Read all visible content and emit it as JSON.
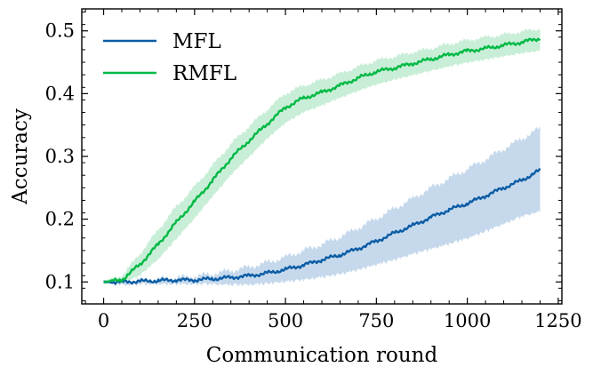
{
  "chart_data": {
    "type": "line",
    "title": "",
    "xlabel": "Communication round",
    "ylabel": "Accuracy",
    "xlim": [
      -60,
      1260
    ],
    "ylim": [
      0.065,
      0.535
    ],
    "xticks": [
      0,
      250,
      500,
      750,
      1000,
      1250
    ],
    "xtick_labels": [
      "0",
      "250",
      "500",
      "750",
      "1000",
      "1250"
    ],
    "yticks": [
      0.1,
      0.2,
      0.3,
      0.4,
      0.5
    ],
    "ytick_labels": [
      "0.1",
      "0.2",
      "0.3",
      "0.4",
      "0.5"
    ],
    "legend_position": "top-left",
    "series": [
      {
        "name": "MFL",
        "color": "#0C5DA5",
        "band_color": "#c6d9ec",
        "x": [
          0,
          50,
          100,
          150,
          200,
          250,
          300,
          350,
          400,
          450,
          500,
          550,
          600,
          650,
          700,
          750,
          800,
          850,
          900,
          950,
          1000,
          1050,
          1100,
          1150,
          1200
        ],
        "values": [
          0.1,
          0.1,
          0.101,
          0.102,
          0.103,
          0.103,
          0.105,
          0.107,
          0.11,
          0.114,
          0.12,
          0.127,
          0.135,
          0.143,
          0.153,
          0.165,
          0.178,
          0.19,
          0.203,
          0.215,
          0.225,
          0.237,
          0.25,
          0.262,
          0.278
        ],
        "lower": [
          0.098,
          0.098,
          0.099,
          0.099,
          0.099,
          0.099,
          0.099,
          0.098,
          0.098,
          0.1,
          0.103,
          0.106,
          0.11,
          0.115,
          0.122,
          0.13,
          0.138,
          0.147,
          0.155,
          0.163,
          0.172,
          0.183,
          0.195,
          0.207,
          0.215
        ],
        "upper": [
          0.102,
          0.102,
          0.103,
          0.105,
          0.107,
          0.109,
          0.113,
          0.118,
          0.124,
          0.131,
          0.14,
          0.15,
          0.16,
          0.172,
          0.186,
          0.201,
          0.217,
          0.233,
          0.25,
          0.265,
          0.28,
          0.295,
          0.312,
          0.328,
          0.345
        ]
      },
      {
        "name": "RMFL",
        "color": "#00B945",
        "band_color": "#c9eed7",
        "x": [
          0,
          50,
          100,
          150,
          200,
          250,
          300,
          350,
          400,
          450,
          500,
          550,
          600,
          650,
          700,
          750,
          800,
          850,
          900,
          950,
          1000,
          1050,
          1100,
          1150,
          1200
        ],
        "values": [
          0.1,
          0.103,
          0.128,
          0.16,
          0.195,
          0.228,
          0.262,
          0.297,
          0.325,
          0.352,
          0.378,
          0.393,
          0.402,
          0.413,
          0.425,
          0.435,
          0.441,
          0.448,
          0.455,
          0.462,
          0.468,
          0.472,
          0.477,
          0.482,
          0.488
        ],
        "lower": [
          0.098,
          0.099,
          0.112,
          0.138,
          0.17,
          0.203,
          0.238,
          0.272,
          0.301,
          0.33,
          0.355,
          0.372,
          0.383,
          0.395,
          0.406,
          0.416,
          0.424,
          0.431,
          0.438,
          0.445,
          0.451,
          0.456,
          0.461,
          0.466,
          0.47
        ],
        "upper": [
          0.102,
          0.11,
          0.145,
          0.183,
          0.22,
          0.252,
          0.286,
          0.32,
          0.348,
          0.375,
          0.4,
          0.413,
          0.422,
          0.432,
          0.443,
          0.453,
          0.459,
          0.466,
          0.472,
          0.479,
          0.485,
          0.49,
          0.494,
          0.499,
          0.504
        ]
      }
    ]
  }
}
